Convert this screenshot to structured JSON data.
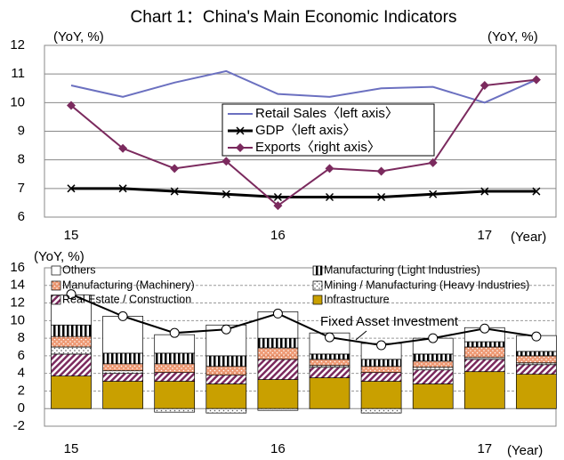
{
  "chart_data": [
    {
      "type": "line",
      "title": "Chart 1：China's Main Economic Indicators",
      "ylabel": "(YoY, %)",
      "y2label": "(YoY, %)",
      "xlabel": "(Year)",
      "categories": [
        "15",
        null,
        null,
        null,
        "16",
        null,
        null,
        null,
        "17",
        null
      ],
      "ylim": [
        6,
        12
      ],
      "yticks": [
        6,
        7,
        8,
        9,
        10,
        11,
        12
      ],
      "y2lim": [
        6,
        12
      ],
      "grid": true,
      "series": [
        {
          "name": "Retail Sales〈left axis〉",
          "color": "#6b70c0",
          "marker": "none",
          "values": [
            10.6,
            10.2,
            10.7,
            11.1,
            10.3,
            10.2,
            10.5,
            10.55,
            10.0,
            10.8
          ]
        },
        {
          "name": "GDP〈left axis〉",
          "color": "#000000",
          "marker": "x",
          "values": [
            7.0,
            7.0,
            6.9,
            6.8,
            6.7,
            6.7,
            6.7,
            6.8,
            6.9,
            6.9
          ]
        },
        {
          "name": "Exports〈right axis〉",
          "color": "#7b2a5e",
          "marker": "diamond",
          "axis": "y2",
          "values": [
            9.9,
            8.4,
            7.7,
            7.95,
            6.4,
            7.7,
            7.6,
            7.9,
            10.6,
            10.8
          ]
        }
      ]
    },
    {
      "type": "bar",
      "stacked": true,
      "ylabel": "(YoY, %)",
      "xlabel": "(Year)",
      "categories": [
        "15",
        null,
        null,
        null,
        "16",
        null,
        null,
        null,
        "17",
        null
      ],
      "ylim": [
        -2,
        16
      ],
      "yticks": [
        -2,
        0,
        2,
        4,
        6,
        8,
        10,
        12,
        14,
        16
      ],
      "grid": true,
      "series": [
        {
          "name": "Infrastructure",
          "color": "#c9a000",
          "hatch": "none",
          "values": [
            3.7,
            3.1,
            3.1,
            2.8,
            3.3,
            3.5,
            3.1,
            2.8,
            4.2,
            3.9
          ]
        },
        {
          "name": "Real Estate / Construction",
          "color": "#7b2a5e",
          "hatch": "diagonal",
          "values": [
            2.5,
            0.9,
            1.0,
            1.0,
            2.3,
            1.2,
            1.0,
            1.6,
            1.4,
            1.1
          ]
        },
        {
          "name": "Mining / Manufacturing (Heavy Industries)",
          "color": "#888888",
          "hatch": "dots",
          "values": [
            0.8,
            0.3,
            -0.4,
            -0.5,
            -0.2,
            0.2,
            -0.5,
            0.3,
            0.2,
            0.2
          ]
        },
        {
          "name": "Manufacturing (Machinery)",
          "color": "#e8703a",
          "hatch": "dots",
          "values": [
            1.2,
            0.8,
            1.0,
            1.0,
            1.3,
            0.7,
            0.7,
            0.7,
            1.2,
            0.8
          ]
        },
        {
          "name": "Manufacturing (Light Industries)",
          "color": "#000000",
          "hatch": "vertical",
          "values": [
            1.3,
            1.2,
            1.2,
            1.2,
            1.1,
            0.6,
            0.8,
            0.8,
            0.6,
            0.5
          ]
        },
        {
          "name": "Others",
          "color": "#ffffff",
          "hatch": "none",
          "values": [
            3.4,
            4.2,
            2.1,
            3.5,
            3.0,
            2.4,
            1.8,
            1.8,
            1.6,
            1.8
          ]
        },
        {
          "name": "Fixed Asset Investment",
          "type": "line",
          "color": "#000000",
          "values": [
            13.0,
            10.5,
            8.6,
            9.0,
            10.8,
            8.1,
            7.2,
            8.0,
            9.1,
            8.2
          ]
        }
      ]
    }
  ]
}
